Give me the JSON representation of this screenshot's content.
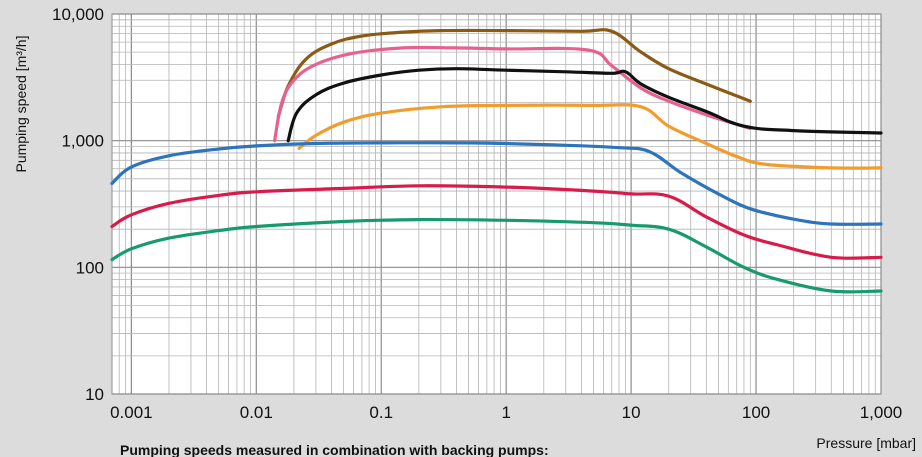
{
  "chart_data": {
    "type": "line",
    "title": "",
    "xlabel": "Pressure [mbar]",
    "ylabel": "Pumping speed [m³/h]",
    "x_scale": "log",
    "y_scale": "log",
    "xlim": [
      0.0007,
      1000
    ],
    "ylim": [
      10,
      10000
    ],
    "x_ticks": [
      0.001,
      0.01,
      0.1,
      1,
      10,
      100,
      1000
    ],
    "x_tick_labels": [
      "0.001",
      "0.01",
      "0.1",
      "1",
      "10",
      "100",
      "1,000"
    ],
    "y_ticks": [
      10,
      100,
      1000,
      10000
    ],
    "y_tick_labels": [
      "10",
      "100",
      "1,000",
      "10,000"
    ],
    "grid": true,
    "footnote": "Pumping speeds measured in combination with backing pumps:",
    "series": [
      {
        "color": "#8B5A14",
        "points": [
          [
            0.015,
            1550
          ],
          [
            0.018,
            2700
          ],
          [
            0.025,
            4400
          ],
          [
            0.04,
            5800
          ],
          [
            0.07,
            6700
          ],
          [
            0.15,
            7200
          ],
          [
            0.3,
            7400
          ],
          [
            1,
            7400
          ],
          [
            4,
            7300
          ],
          [
            7,
            7300
          ],
          [
            12,
            5000
          ],
          [
            20,
            3700
          ],
          [
            40,
            2800
          ],
          [
            90,
            2050
          ]
        ]
      },
      {
        "color": "#E8608E",
        "points": [
          [
            0.014,
            1000
          ],
          [
            0.016,
            2000
          ],
          [
            0.02,
            3000
          ],
          [
            0.03,
            4000
          ],
          [
            0.06,
            4900
          ],
          [
            0.15,
            5400
          ],
          [
            0.4,
            5400
          ],
          [
            1,
            5300
          ],
          [
            4.5,
            5200
          ],
          [
            7,
            3900
          ],
          [
            12,
            2600
          ],
          [
            20,
            2050
          ],
          [
            40,
            1600
          ],
          [
            90,
            1250
          ]
        ]
      },
      {
        "color": "#111111",
        "points": [
          [
            0.018,
            1000
          ],
          [
            0.021,
            1650
          ],
          [
            0.03,
            2300
          ],
          [
            0.05,
            2850
          ],
          [
            0.1,
            3300
          ],
          [
            0.2,
            3600
          ],
          [
            0.4,
            3700
          ],
          [
            1,
            3600
          ],
          [
            3,
            3500
          ],
          [
            7,
            3400
          ],
          [
            9,
            3500
          ],
          [
            12,
            2800
          ],
          [
            20,
            2200
          ],
          [
            40,
            1700
          ],
          [
            80,
            1300
          ],
          [
            200,
            1200
          ],
          [
            1000,
            1150
          ]
        ]
      },
      {
        "color": "#F39C2E",
        "points": [
          [
            0.022,
            870
          ],
          [
            0.03,
            1100
          ],
          [
            0.05,
            1400
          ],
          [
            0.1,
            1650
          ],
          [
            0.3,
            1850
          ],
          [
            1,
            1900
          ],
          [
            5,
            1900
          ],
          [
            12,
            1850
          ],
          [
            20,
            1300
          ],
          [
            40,
            950
          ],
          [
            70,
            750
          ],
          [
            120,
            650
          ],
          [
            400,
            610
          ],
          [
            1000,
            610
          ]
        ]
      },
      {
        "color": "#2E74BD",
        "points": [
          [
            0.0007,
            460
          ],
          [
            0.001,
            620
          ],
          [
            0.002,
            760
          ],
          [
            0.005,
            860
          ],
          [
            0.01,
            910
          ],
          [
            0.03,
            950
          ],
          [
            0.1,
            960
          ],
          [
            0.5,
            960
          ],
          [
            3,
            920
          ],
          [
            8,
            880
          ],
          [
            14,
            820
          ],
          [
            25,
            560
          ],
          [
            50,
            380
          ],
          [
            90,
            290
          ],
          [
            200,
            240
          ],
          [
            400,
            220
          ],
          [
            1000,
            220
          ]
        ]
      },
      {
        "color": "#D81B4B",
        "points": [
          [
            0.0007,
            210
          ],
          [
            0.001,
            260
          ],
          [
            0.002,
            320
          ],
          [
            0.005,
            370
          ],
          [
            0.01,
            395
          ],
          [
            0.05,
            420
          ],
          [
            0.2,
            440
          ],
          [
            1,
            430
          ],
          [
            5,
            400
          ],
          [
            10,
            380
          ],
          [
            20,
            365
          ],
          [
            40,
            250
          ],
          [
            80,
            180
          ],
          [
            150,
            150
          ],
          [
            400,
            120
          ],
          [
            1000,
            120
          ]
        ]
      },
      {
        "color": "#169A6F",
        "points": [
          [
            0.0007,
            115
          ],
          [
            0.001,
            140
          ],
          [
            0.002,
            170
          ],
          [
            0.005,
            195
          ],
          [
            0.01,
            210
          ],
          [
            0.05,
            230
          ],
          [
            0.2,
            238
          ],
          [
            1,
            235
          ],
          [
            5,
            225
          ],
          [
            10,
            215
          ],
          [
            20,
            200
          ],
          [
            40,
            145
          ],
          [
            80,
            100
          ],
          [
            150,
            80
          ],
          [
            400,
            65
          ],
          [
            1000,
            65
          ]
        ]
      }
    ]
  }
}
